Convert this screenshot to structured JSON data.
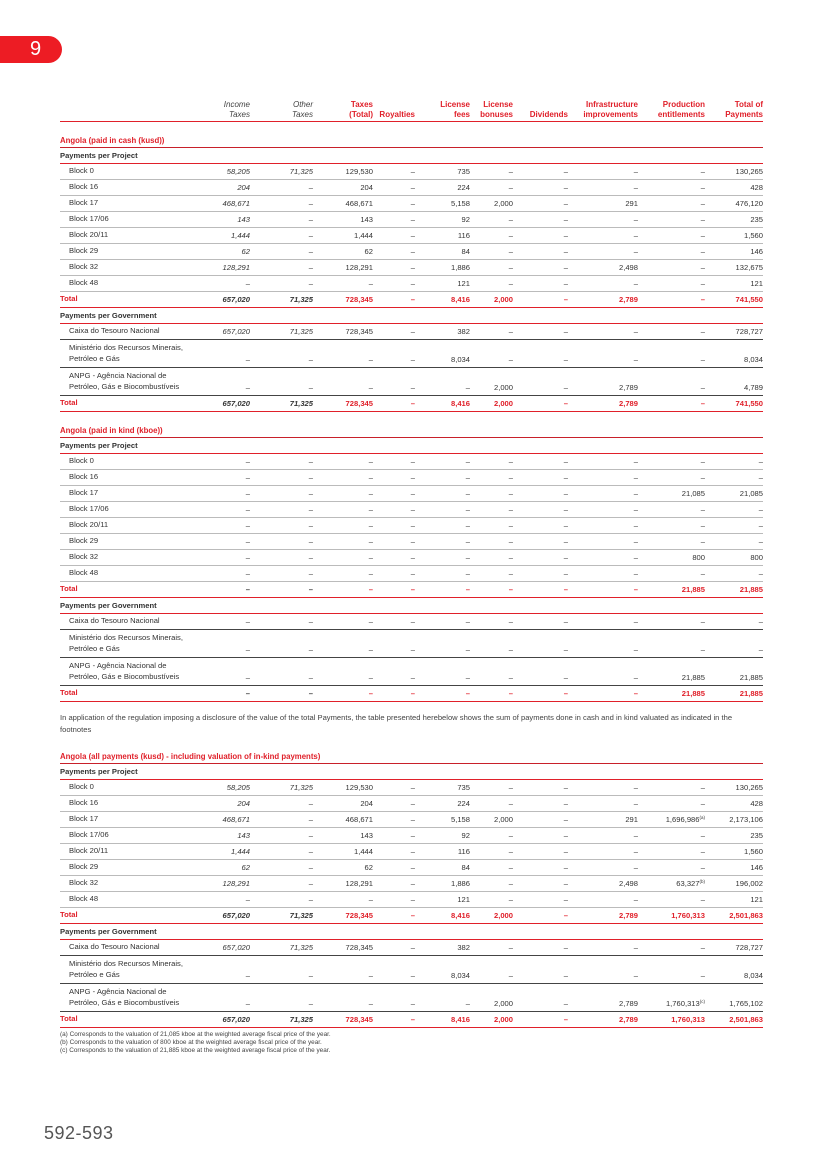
{
  "chapter": "9",
  "page_number": "592-593",
  "columns": [
    "Income Taxes",
    "Other Taxes",
    "Taxes (Total)",
    "Royalties",
    "License fees",
    "License bonuses",
    "Dividends",
    "Infrastructure improvements",
    "Production entitlements",
    "Total of Payments"
  ],
  "column_lines": [
    [
      "Income",
      "Taxes"
    ],
    [
      "Other",
      "Taxes"
    ],
    [
      "Taxes",
      "(Total)"
    ],
    [
      "",
      "Royalties"
    ],
    [
      "License",
      "fees"
    ],
    [
      "License",
      "bonuses"
    ],
    [
      "",
      "Dividends"
    ],
    [
      "Infrastructure",
      "improvements"
    ],
    [
      "Production",
      "entitlements"
    ],
    [
      "Total of",
      "Payments"
    ]
  ],
  "paragraph": "In application of the regulation imposing a disclosure of the value of the total Payments, the table presented herebelow shows the sum of payments done in cash and in kind valuated as indicated in the footnotes",
  "tables": [
    {
      "title": "Angola (paid in cash (kusd))",
      "project_label": "Payments per Project",
      "projects": [
        [
          "Block 0",
          "58,205",
          "71,325",
          "129,530",
          "–",
          "735",
          "–",
          "–",
          "–",
          "–",
          "130,265"
        ],
        [
          "Block 16",
          "204",
          "–",
          "204",
          "–",
          "224",
          "–",
          "–",
          "–",
          "–",
          "428"
        ],
        [
          "Block 17",
          "468,671",
          "–",
          "468,671",
          "–",
          "5,158",
          "2,000",
          "–",
          "291",
          "–",
          "476,120"
        ],
        [
          "Block 17/06",
          "143",
          "–",
          "143",
          "–",
          "92",
          "–",
          "–",
          "–",
          "–",
          "235"
        ],
        [
          "Block 20/11",
          "1,444",
          "–",
          "1,444",
          "–",
          "116",
          "–",
          "–",
          "–",
          "–",
          "1,560"
        ],
        [
          "Block 29",
          "62",
          "–",
          "62",
          "–",
          "84",
          "–",
          "–",
          "–",
          "–",
          "146"
        ],
        [
          "Block 32",
          "128,291",
          "–",
          "128,291",
          "–",
          "1,886",
          "–",
          "–",
          "2,498",
          "–",
          "132,675"
        ],
        [
          "Block 48",
          "–",
          "–",
          "–",
          "–",
          "121",
          "–",
          "–",
          "–",
          "–",
          "121"
        ]
      ],
      "project_total": [
        "Total",
        "657,020",
        "71,325",
        "728,345",
        "–",
        "8,416",
        "2,000",
        "–",
        "2,789",
        "–",
        "741,550"
      ],
      "government_label": "Payments per Government",
      "governments": [
        [
          "Caixa do Tesouro Nacional",
          "657,020",
          "71,325",
          "728,345",
          "–",
          "382",
          "–",
          "–",
          "–",
          "–",
          "728,727"
        ],
        [
          "Ministério dos Recursos Minerais, Petróleo e Gás",
          "–",
          "–",
          "–",
          "–",
          "8,034",
          "–",
          "–",
          "–",
          "–",
          "8,034"
        ],
        [
          "ANPG - Agência Nacional de Petróleo, Gás e Biocombustíveis",
          "–",
          "–",
          "–",
          "–",
          "–",
          "2,000",
          "–",
          "2,789",
          "–",
          "4,789"
        ]
      ],
      "government_total": [
        "Total",
        "657,020",
        "71,325",
        "728,345",
        "–",
        "8,416",
        "2,000",
        "–",
        "2,789",
        "–",
        "741,550"
      ]
    },
    {
      "title": "Angola (paid in kind (kboe))",
      "project_label": "Payments per Project",
      "projects": [
        [
          "Block 0",
          "–",
          "–",
          "–",
          "–",
          "–",
          "–",
          "–",
          "–",
          "–",
          "–"
        ],
        [
          "Block 16",
          "–",
          "–",
          "–",
          "–",
          "–",
          "–",
          "–",
          "–",
          "–",
          "–"
        ],
        [
          "Block 17",
          "–",
          "–",
          "–",
          "–",
          "–",
          "–",
          "–",
          "–",
          "21,085",
          "21,085"
        ],
        [
          "Block 17/06",
          "–",
          "–",
          "–",
          "–",
          "–",
          "–",
          "–",
          "–",
          "–",
          "–"
        ],
        [
          "Block 20/11",
          "–",
          "–",
          "–",
          "–",
          "–",
          "–",
          "–",
          "–",
          "–",
          "–"
        ],
        [
          "Block 29",
          "–",
          "–",
          "–",
          "–",
          "–",
          "–",
          "–",
          "–",
          "–",
          "–"
        ],
        [
          "Block 32",
          "–",
          "–",
          "–",
          "–",
          "–",
          "–",
          "–",
          "–",
          "800",
          "800"
        ],
        [
          "Block 48",
          "–",
          "–",
          "–",
          "–",
          "–",
          "–",
          "–",
          "–",
          "–",
          "–"
        ]
      ],
      "project_total": [
        "Total",
        "–",
        "–",
        "–",
        "–",
        "–",
        "–",
        "–",
        "–",
        "21,885",
        "21,885"
      ],
      "government_label": "Payments per Government",
      "governments": [
        [
          "Caixa do Tesouro Nacional",
          "–",
          "–",
          "–",
          "–",
          "–",
          "–",
          "–",
          "–",
          "–",
          "–"
        ],
        [
          "Ministério dos Recursos Minerais, Petróleo e Gás",
          "–",
          "–",
          "–",
          "–",
          "–",
          "–",
          "–",
          "–",
          "–",
          "–"
        ],
        [
          "ANPG - Agência Nacional de Petróleo, Gás e Biocombustíveis",
          "–",
          "–",
          "–",
          "–",
          "–",
          "–",
          "–",
          "–",
          "21,885",
          "21,885"
        ]
      ],
      "government_total": [
        "Total",
        "–",
        "–",
        "–",
        "–",
        "–",
        "–",
        "–",
        "–",
        "21,885",
        "21,885"
      ]
    },
    {
      "title": "Angola (all payments (kusd) - including valuation of in-kind payments)",
      "project_label": "Payments per Project",
      "projects": [
        [
          "Block 0",
          "58,205",
          "71,325",
          "129,530",
          "–",
          "735",
          "–",
          "–",
          "–",
          "–",
          "130,265"
        ],
        [
          "Block 16",
          "204",
          "–",
          "204",
          "–",
          "224",
          "–",
          "–",
          "–",
          "–",
          "428"
        ],
        [
          "Block 17",
          "468,671",
          "–",
          "468,671",
          "–",
          "5,158",
          "2,000",
          "–",
          "291",
          "1,696,986^(a)",
          "2,173,106"
        ],
        [
          "Block 17/06",
          "143",
          "–",
          "143",
          "–",
          "92",
          "–",
          "–",
          "–",
          "–",
          "235"
        ],
        [
          "Block 20/11",
          "1,444",
          "–",
          "1,444",
          "–",
          "116",
          "–",
          "–",
          "–",
          "–",
          "1,560"
        ],
        [
          "Block 29",
          "62",
          "–",
          "62",
          "–",
          "84",
          "–",
          "–",
          "–",
          "–",
          "146"
        ],
        [
          "Block 32",
          "128,291",
          "–",
          "128,291",
          "–",
          "1,886",
          "–",
          "–",
          "2,498",
          "63,327^(b)",
          "196,002"
        ],
        [
          "Block 48",
          "–",
          "–",
          "–",
          "–",
          "121",
          "–",
          "–",
          "–",
          "–",
          "121"
        ]
      ],
      "project_total": [
        "Total",
        "657,020",
        "71,325",
        "728,345",
        "–",
        "8,416",
        "2,000",
        "–",
        "2,789",
        "1,760,313",
        "2,501,863"
      ],
      "government_label": "Payments per Government",
      "governments": [
        [
          "Caixa do Tesouro Nacional",
          "657,020",
          "71,325",
          "728,345",
          "–",
          "382",
          "–",
          "–",
          "–",
          "–",
          "728,727"
        ],
        [
          "Ministério dos Recursos Minerais, Petróleo e Gás",
          "–",
          "–",
          "–",
          "–",
          "8,034",
          "–",
          "–",
          "–",
          "–",
          "8,034"
        ],
        [
          "ANPG - Agência Nacional de Petróleo, Gás e Biocombustíveis",
          "–",
          "–",
          "–",
          "–",
          "–",
          "2,000",
          "–",
          "2,789",
          "1,760,313^(c)",
          "1,765,102"
        ]
      ],
      "government_total": [
        "Total",
        "657,020",
        "71,325",
        "728,345",
        "–",
        "8,416",
        "2,000",
        "–",
        "2,789",
        "1,760,313",
        "2,501,863"
      ]
    }
  ],
  "footnotes": [
    "(a)   Corresponds to the valuation of 21,085 kboe at the weighted average fiscal price of the year.",
    "(b)   Corresponds to the valuation of 800 kboe at the weighted average fiscal price of the year.",
    "(c)   Corresponds to the valuation of 21,885 kboe at the weighted average fiscal price of the year."
  ]
}
